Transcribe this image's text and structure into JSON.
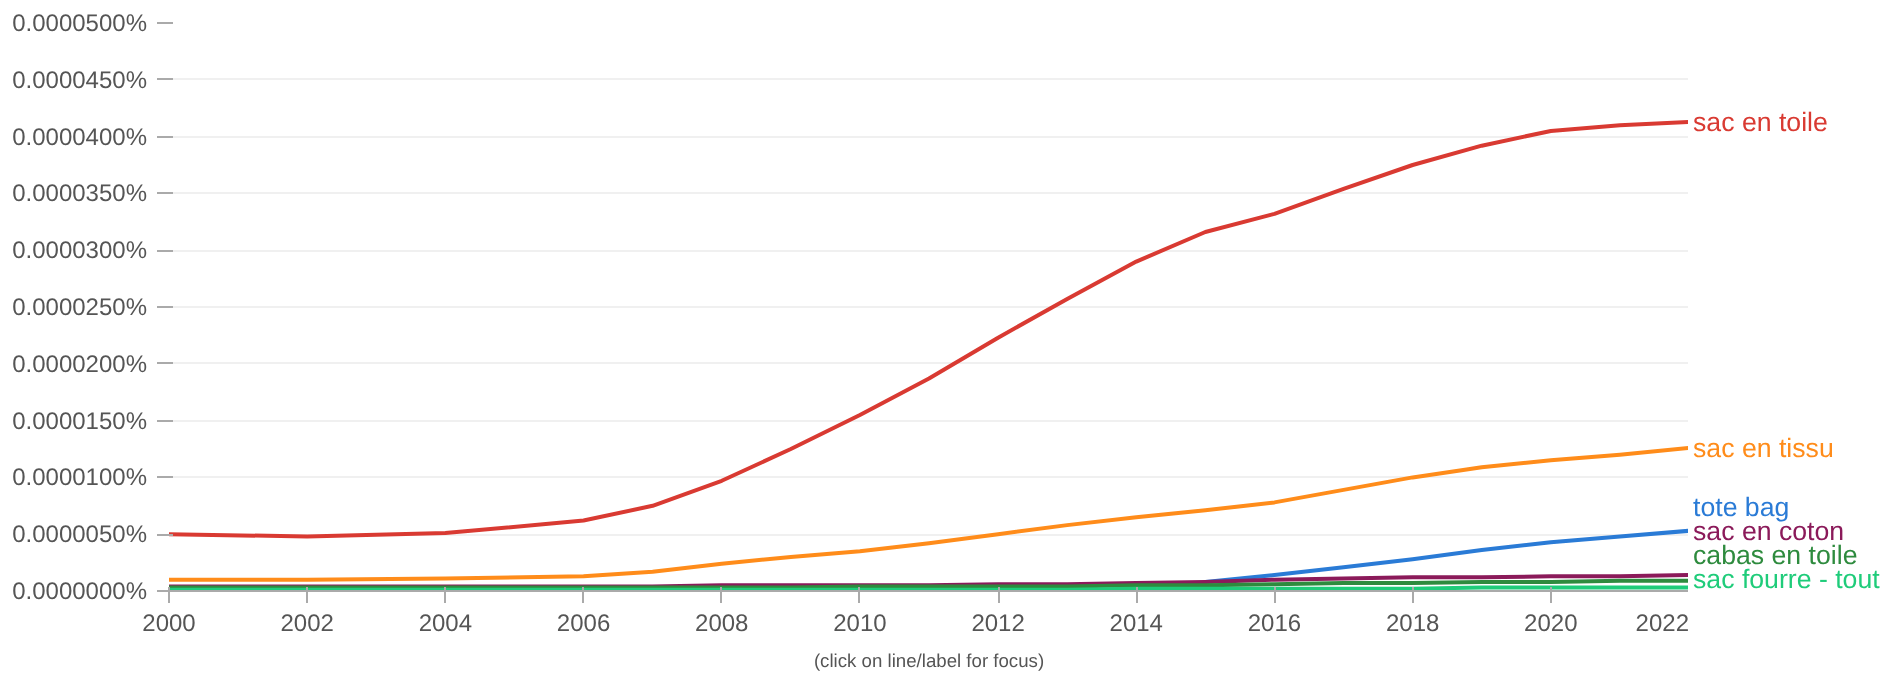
{
  "chart_data": {
    "type": "line",
    "annotations": [
      "(click on line/label for focus)"
    ],
    "x": [
      2000,
      2002,
      2004,
      2006,
      2007,
      2008,
      2009,
      2010,
      2011,
      2012,
      2013,
      2014,
      2015,
      2016,
      2017,
      2018,
      2019,
      2020,
      2021,
      2022
    ],
    "series": [
      {
        "name": "sac en toile",
        "color": "#d93a32",
        "values": [
          5e-06,
          4.8e-06,
          5.1e-06,
          6.2e-06,
          7.5e-06,
          9.7e-06,
          1.25e-05,
          1.55e-05,
          1.87e-05,
          2.23e-05,
          2.57e-05,
          2.9e-05,
          3.16e-05,
          3.32e-05,
          3.54e-05,
          3.75e-05,
          3.92e-05,
          4.05e-05,
          4.1e-05,
          4.13e-05
        ]
      },
      {
        "name": "sac en tissu",
        "color": "#ff8c1a",
        "values": [
          1e-06,
          1e-06,
          1.1e-06,
          1.3e-06,
          1.7e-06,
          2.4e-06,
          3e-06,
          3.5e-06,
          4.2e-06,
          5e-06,
          5.8e-06,
          6.5e-06,
          7.1e-06,
          7.8e-06,
          8.9e-06,
          1e-05,
          1.09e-05,
          1.15e-05,
          1.2e-05,
          1.26e-05
        ]
      },
      {
        "name": "tote bag",
        "color": "#2a7bd6",
        "values": [
          null,
          null,
          null,
          null,
          null,
          null,
          null,
          null,
          null,
          null,
          null,
          null,
          8e-07,
          1.4e-06,
          2.1e-06,
          2.8e-06,
          3.6e-06,
          4.3e-06,
          4.8e-06,
          5.3e-06
        ]
      },
      {
        "name": "sac en coton",
        "color": "#8b1a5a",
        "values": [
          4e-07,
          4e-07,
          4e-07,
          4e-07,
          4e-07,
          5e-07,
          5e-07,
          5e-07,
          5e-07,
          6e-07,
          6e-07,
          7e-07,
          8e-07,
          1e-06,
          1.1e-06,
          1.2e-06,
          1.2e-06,
          1.3e-06,
          1.3e-06,
          1.4e-06
        ]
      },
      {
        "name": "cabas en toile",
        "color": "#2e8b3e",
        "values": [
          3e-07,
          3e-07,
          3e-07,
          3e-07,
          3e-07,
          3e-07,
          3e-07,
          4e-07,
          4e-07,
          4e-07,
          4e-07,
          5e-07,
          5e-07,
          6e-07,
          7e-07,
          7e-07,
          8e-07,
          8e-07,
          9e-07,
          9e-07
        ]
      },
      {
        "name": "sac fourre - tout",
        "color": "#1fcc7a",
        "values": [
          1e-07,
          1e-07,
          1e-07,
          1e-07,
          1e-07,
          1e-07,
          1e-07,
          1e-07,
          1e-07,
          1e-07,
          1e-07,
          2e-07,
          2e-07,
          2e-07,
          2e-07,
          2e-07,
          3e-07,
          3e-07,
          3e-07,
          3e-07
        ]
      }
    ],
    "xlim": [
      2000,
      2022
    ],
    "xticks": [
      2000,
      2002,
      2004,
      2006,
      2008,
      2010,
      2012,
      2014,
      2016,
      2018,
      2020,
      2022
    ],
    "ylim": [
      0,
      5e-05
    ],
    "yticks": [
      {
        "value": 0,
        "label": "0.0000000%"
      },
      {
        "value": 5e-06,
        "label": "0.0000050%"
      },
      {
        "value": 1e-05,
        "label": "0.0000100%"
      },
      {
        "value": 1.5e-05,
        "label": "0.0000150%"
      },
      {
        "value": 2e-05,
        "label": "0.0000200%"
      },
      {
        "value": 2.5e-05,
        "label": "0.0000250%"
      },
      {
        "value": 3e-05,
        "label": "0.0000300%"
      },
      {
        "value": 3.5e-05,
        "label": "0.0000350%"
      },
      {
        "value": 4e-05,
        "label": "0.0000400%"
      },
      {
        "value": 4.5e-05,
        "label": "0.0000450%"
      },
      {
        "value": 5e-05,
        "label": "0.0000500%"
      }
    ],
    "grid": "y",
    "marker": "none",
    "line_style": "solid"
  }
}
